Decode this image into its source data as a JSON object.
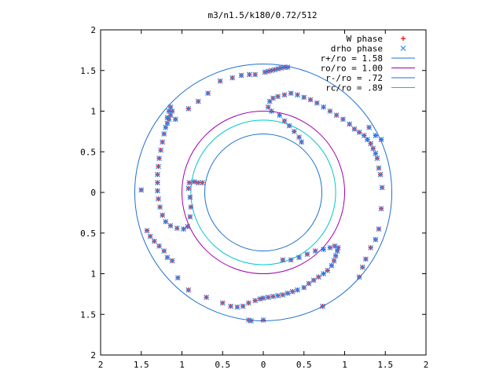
{
  "chart_data": {
    "type": "scatter",
    "title": "m3/n1.5/k180/0.72/512",
    "xlabel": "",
    "ylabel": "",
    "xlim": [
      -2,
      2
    ],
    "ylim": [
      -2,
      2
    ],
    "x_ticks": [
      {
        "value": -2,
        "label": "2"
      },
      {
        "value": -1.5,
        "label": "1.5"
      },
      {
        "value": -1,
        "label": "1"
      },
      {
        "value": -0.5,
        "label": "0.5"
      },
      {
        "value": 0,
        "label": "0"
      },
      {
        "value": 0.5,
        "label": "0.5"
      },
      {
        "value": 1,
        "label": "1"
      },
      {
        "value": 1.5,
        "label": "1.5"
      },
      {
        "value": 2,
        "label": "2"
      }
    ],
    "y_ticks": [
      {
        "value": 2,
        "label": "2"
      },
      {
        "value": 1.5,
        "label": "1.5"
      },
      {
        "value": 1,
        "label": "1"
      },
      {
        "value": 0.5,
        "label": "0.5"
      },
      {
        "value": 0,
        "label": "0"
      },
      {
        "value": -0.5,
        "label": "0.5"
      },
      {
        "value": -1,
        "label": "1"
      },
      {
        "value": -1.5,
        "label": "1.5"
      },
      {
        "value": -2,
        "label": "2"
      }
    ],
    "legend_position": "top-right",
    "circles": [
      {
        "name": "r+/ro = 1.58",
        "radius": 1.58,
        "color": "#1f6fd0"
      },
      {
        "name": "ro/ro = 1.00",
        "radius": 1.0,
        "color": "#a000b0"
      },
      {
        "name": "r-/ro = .72",
        "radius": 0.72,
        "color": "#1f6fd0"
      },
      {
        "name": "rc/ro = .89",
        "radius": 0.89,
        "color": "#00c8c8"
      }
    ],
    "series": [
      {
        "name": "W phase",
        "marker": "plus",
        "color": "#ff0000",
        "points": [
          [
            0.02,
            1.48
          ],
          [
            0.06,
            1.49
          ],
          [
            0.1,
            1.5
          ],
          [
            0.14,
            1.51
          ],
          [
            0.18,
            1.52
          ],
          [
            0.22,
            1.53
          ],
          [
            0.26,
            1.54
          ],
          [
            0.3,
            1.54
          ],
          [
            -0.1,
            1.45
          ],
          [
            -0.17,
            1.45
          ],
          [
            -0.27,
            1.44
          ],
          [
            -0.38,
            1.41
          ],
          [
            -0.53,
            1.37
          ],
          [
            -0.68,
            1.22
          ],
          [
            -0.8,
            1.12
          ],
          [
            -0.92,
            1.03
          ],
          [
            -1.08,
            0.9
          ],
          [
            -1.2,
            0.8
          ],
          [
            -1.18,
            0.85
          ],
          [
            -1.16,
            0.9
          ],
          [
            -1.14,
            0.95
          ],
          [
            -1.12,
            1.0
          ],
          [
            -1.14,
            1.05
          ],
          [
            -1.16,
            1.0
          ],
          [
            -1.18,
            0.92
          ],
          [
            -1.22,
            0.72
          ],
          [
            -1.24,
            0.62
          ],
          [
            -1.26,
            0.52
          ],
          [
            -1.28,
            0.42
          ],
          [
            -1.29,
            0.32
          ],
          [
            -1.3,
            0.22
          ],
          [
            -1.3,
            0.12
          ],
          [
            -1.3,
            0.02
          ],
          [
            -1.29,
            -0.08
          ],
          [
            -1.27,
            -0.18
          ],
          [
            -1.24,
            -0.28
          ],
          [
            -1.2,
            -0.36
          ],
          [
            -1.14,
            -0.41
          ],
          [
            -1.06,
            -0.44
          ],
          [
            -0.98,
            -0.45
          ],
          [
            -0.93,
            -0.42
          ],
          [
            -0.9,
            -0.3
          ],
          [
            -0.89,
            -0.18
          ],
          [
            -0.9,
            -0.06
          ],
          [
            -0.92,
            0.05
          ],
          [
            -0.91,
            0.12
          ],
          [
            -0.85,
            0.13
          ],
          [
            -0.8,
            0.12
          ],
          [
            -0.75,
            0.12
          ],
          [
            -1.5,
            0.03
          ],
          [
            -1.43,
            -0.47
          ],
          [
            -1.39,
            -0.54
          ],
          [
            -1.34,
            -0.6
          ],
          [
            -1.28,
            -0.66
          ],
          [
            -1.22,
            -0.72
          ],
          [
            -1.18,
            -0.8
          ],
          [
            -1.12,
            -0.84
          ],
          [
            -1.05,
            -1.05
          ],
          [
            -0.92,
            -1.2
          ],
          [
            -0.7,
            -1.29
          ],
          [
            -0.5,
            -1.36
          ],
          [
            -0.4,
            -1.4
          ],
          [
            -0.32,
            -1.41
          ],
          [
            -0.25,
            -1.4
          ],
          [
            -0.18,
            -1.36
          ],
          [
            -0.1,
            -1.33
          ],
          [
            -0.04,
            -1.31
          ],
          [
            0.0,
            -1.3
          ],
          [
            0.06,
            -1.29
          ],
          [
            0.12,
            -1.28
          ],
          [
            0.18,
            -1.27
          ],
          [
            0.24,
            -1.26
          ],
          [
            0.3,
            -1.24
          ],
          [
            0.36,
            -1.22
          ],
          [
            0.42,
            -1.2
          ],
          [
            0.5,
            -1.17
          ],
          [
            0.56,
            -1.12
          ],
          [
            0.62,
            -1.08
          ],
          [
            0.68,
            -1.04
          ],
          [
            0.74,
            -1.0
          ],
          [
            0.79,
            -0.96
          ],
          [
            0.84,
            -0.9
          ],
          [
            0.87,
            -0.84
          ],
          [
            0.89,
            -0.78
          ],
          [
            0.91,
            -0.72
          ],
          [
            0.92,
            -0.68
          ],
          [
            0.88,
            -0.66
          ],
          [
            0.82,
            -0.68
          ],
          [
            0.74,
            -0.7
          ],
          [
            0.64,
            -0.72
          ],
          [
            0.54,
            -0.76
          ],
          [
            0.44,
            -0.8
          ],
          [
            0.34,
            -0.83
          ],
          [
            0.24,
            -0.83
          ],
          [
            -0.15,
            -1.58
          ],
          [
            -0.18,
            -1.57
          ],
          [
            0.0,
            -1.57
          ],
          [
            0.73,
            -1.4
          ],
          [
            0.1,
            1.0
          ],
          [
            0.06,
            1.05
          ],
          [
            0.08,
            1.12
          ],
          [
            0.12,
            1.16
          ],
          [
            0.18,
            1.18
          ],
          [
            0.26,
            1.2
          ],
          [
            0.34,
            1.22
          ],
          [
            0.42,
            1.2
          ],
          [
            0.5,
            1.17
          ],
          [
            0.58,
            1.14
          ],
          [
            0.66,
            1.1
          ],
          [
            0.74,
            1.05
          ],
          [
            0.82,
            1.0
          ],
          [
            0.9,
            0.95
          ],
          [
            0.98,
            0.9
          ],
          [
            1.06,
            0.84
          ],
          [
            1.12,
            0.78
          ],
          [
            1.18,
            0.74
          ],
          [
            1.24,
            0.7
          ],
          [
            1.28,
            0.65
          ],
          [
            1.32,
            0.6
          ],
          [
            1.35,
            0.54
          ],
          [
            1.38,
            0.48
          ],
          [
            1.4,
            0.42
          ],
          [
            1.42,
            0.3
          ],
          [
            1.44,
            0.22
          ],
          [
            1.46,
            0.06
          ],
          [
            1.45,
            -0.2
          ],
          [
            1.42,
            -0.45
          ],
          [
            1.38,
            -0.58
          ],
          [
            1.32,
            -0.68
          ],
          [
            1.26,
            -0.82
          ],
          [
            1.22,
            -0.92
          ],
          [
            1.18,
            -1.04
          ],
          [
            1.38,
            0.7
          ],
          [
            1.45,
            0.65
          ],
          [
            1.3,
            0.8
          ],
          [
            0.2,
            0.95
          ],
          [
            0.26,
            0.88
          ],
          [
            0.32,
            0.82
          ],
          [
            0.38,
            0.75
          ],
          [
            0.44,
            0.68
          ],
          [
            0.47,
            0.62
          ]
        ]
      },
      {
        "name": "drho phase",
        "marker": "cross",
        "color": "#1f8fff",
        "points": [
          [
            0.02,
            1.48
          ],
          [
            0.06,
            1.49
          ],
          [
            0.1,
            1.5
          ],
          [
            0.14,
            1.51
          ],
          [
            0.18,
            1.52
          ],
          [
            0.22,
            1.53
          ],
          [
            0.26,
            1.54
          ],
          [
            0.3,
            1.54
          ],
          [
            -0.1,
            1.45
          ],
          [
            -0.17,
            1.45
          ],
          [
            -0.27,
            1.44
          ],
          [
            -0.38,
            1.41
          ],
          [
            -0.53,
            1.37
          ],
          [
            -0.68,
            1.22
          ],
          [
            -0.8,
            1.12
          ],
          [
            -0.92,
            1.03
          ],
          [
            -1.08,
            0.9
          ],
          [
            -1.2,
            0.8
          ],
          [
            -1.18,
            0.85
          ],
          [
            -1.16,
            0.9
          ],
          [
            -1.14,
            0.95
          ],
          [
            -1.12,
            1.0
          ],
          [
            -1.14,
            1.05
          ],
          [
            -1.16,
            1.0
          ],
          [
            -1.18,
            0.92
          ],
          [
            -1.22,
            0.72
          ],
          [
            -1.24,
            0.62
          ],
          [
            -1.26,
            0.52
          ],
          [
            -1.28,
            0.42
          ],
          [
            -1.29,
            0.32
          ],
          [
            -1.3,
            0.22
          ],
          [
            -1.3,
            0.12
          ],
          [
            -1.3,
            0.02
          ],
          [
            -1.29,
            -0.08
          ],
          [
            -1.27,
            -0.18
          ],
          [
            -1.24,
            -0.28
          ],
          [
            -1.2,
            -0.36
          ],
          [
            -1.14,
            -0.41
          ],
          [
            -1.06,
            -0.44
          ],
          [
            -0.98,
            -0.45
          ],
          [
            -0.93,
            -0.42
          ],
          [
            -0.9,
            -0.3
          ],
          [
            -0.89,
            -0.18
          ],
          [
            -0.9,
            -0.06
          ],
          [
            -0.92,
            0.05
          ],
          [
            -0.91,
            0.12
          ],
          [
            -0.85,
            0.13
          ],
          [
            -0.8,
            0.12
          ],
          [
            -0.75,
            0.12
          ],
          [
            -1.5,
            0.03
          ],
          [
            -1.43,
            -0.47
          ],
          [
            -1.39,
            -0.54
          ],
          [
            -1.34,
            -0.6
          ],
          [
            -1.28,
            -0.66
          ],
          [
            -1.22,
            -0.72
          ],
          [
            -1.18,
            -0.8
          ],
          [
            -1.12,
            -0.84
          ],
          [
            -1.05,
            -1.05
          ],
          [
            -0.92,
            -1.2
          ],
          [
            -0.7,
            -1.29
          ],
          [
            -0.5,
            -1.36
          ],
          [
            -0.4,
            -1.4
          ],
          [
            -0.32,
            -1.41
          ],
          [
            -0.25,
            -1.4
          ],
          [
            -0.18,
            -1.36
          ],
          [
            -0.1,
            -1.33
          ],
          [
            -0.04,
            -1.31
          ],
          [
            0.0,
            -1.3
          ],
          [
            0.06,
            -1.29
          ],
          [
            0.12,
            -1.28
          ],
          [
            0.18,
            -1.27
          ],
          [
            0.24,
            -1.26
          ],
          [
            0.3,
            -1.24
          ],
          [
            0.36,
            -1.22
          ],
          [
            0.42,
            -1.2
          ],
          [
            0.5,
            -1.17
          ],
          [
            0.56,
            -1.12
          ],
          [
            0.62,
            -1.08
          ],
          [
            0.68,
            -1.04
          ],
          [
            0.74,
            -1.0
          ],
          [
            0.79,
            -0.96
          ],
          [
            0.84,
            -0.9
          ],
          [
            0.87,
            -0.84
          ],
          [
            0.89,
            -0.78
          ],
          [
            0.91,
            -0.72
          ],
          [
            0.92,
            -0.68
          ],
          [
            0.88,
            -0.66
          ],
          [
            0.82,
            -0.68
          ],
          [
            0.74,
            -0.7
          ],
          [
            0.64,
            -0.72
          ],
          [
            0.54,
            -0.76
          ],
          [
            0.44,
            -0.8
          ],
          [
            0.34,
            -0.83
          ],
          [
            0.24,
            -0.83
          ],
          [
            -0.15,
            -1.58
          ],
          [
            -0.18,
            -1.57
          ],
          [
            0.0,
            -1.57
          ],
          [
            0.73,
            -1.4
          ],
          [
            0.1,
            1.0
          ],
          [
            0.06,
            1.05
          ],
          [
            0.08,
            1.12
          ],
          [
            0.12,
            1.16
          ],
          [
            0.18,
            1.18
          ],
          [
            0.26,
            1.2
          ],
          [
            0.34,
            1.22
          ],
          [
            0.42,
            1.2
          ],
          [
            0.5,
            1.17
          ],
          [
            0.58,
            1.14
          ],
          [
            0.66,
            1.1
          ],
          [
            0.74,
            1.05
          ],
          [
            0.82,
            1.0
          ],
          [
            0.9,
            0.95
          ],
          [
            0.98,
            0.9
          ],
          [
            1.06,
            0.84
          ],
          [
            1.12,
            0.78
          ],
          [
            1.18,
            0.74
          ],
          [
            1.24,
            0.7
          ],
          [
            1.28,
            0.65
          ],
          [
            1.32,
            0.6
          ],
          [
            1.35,
            0.54
          ],
          [
            1.38,
            0.48
          ],
          [
            1.4,
            0.42
          ],
          [
            1.42,
            0.3
          ],
          [
            1.44,
            0.22
          ],
          [
            1.46,
            0.06
          ],
          [
            1.45,
            -0.2
          ],
          [
            1.42,
            -0.45
          ],
          [
            1.38,
            -0.58
          ],
          [
            1.32,
            -0.68
          ],
          [
            1.26,
            -0.82
          ],
          [
            1.22,
            -0.92
          ],
          [
            1.18,
            -1.04
          ],
          [
            1.38,
            0.7
          ],
          [
            1.45,
            0.65
          ],
          [
            1.3,
            0.8
          ],
          [
            0.2,
            0.95
          ],
          [
            0.26,
            0.88
          ],
          [
            0.32,
            0.82
          ],
          [
            0.38,
            0.75
          ],
          [
            0.44,
            0.68
          ],
          [
            0.47,
            0.62
          ]
        ]
      }
    ],
    "grid": false
  }
}
